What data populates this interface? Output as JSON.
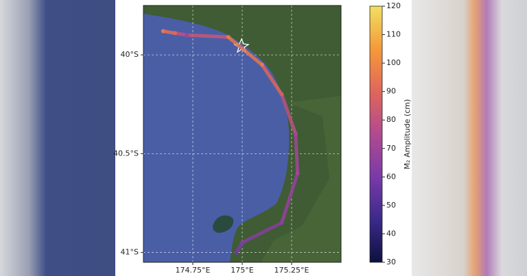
{
  "chart_data": {
    "type": "map",
    "xlim": [
      174.5,
      175.5
    ],
    "ylim": [
      -41.05,
      -39.75
    ],
    "xticks": [
      {
        "value": 174.75,
        "label": "174.75°E"
      },
      {
        "value": 175,
        "label": "175°E"
      },
      {
        "value": 175.25,
        "label": "175.25°E"
      }
    ],
    "yticks": [
      {
        "value": -40,
        "label": "40°S"
      },
      {
        "value": -40.5,
        "label": "40.5°S"
      },
      {
        "value": -41,
        "label": "41°S"
      }
    ],
    "grid": true,
    "track": {
      "lon": [
        174.6,
        174.66,
        174.72,
        174.93,
        175.1,
        175.2,
        175.27,
        175.28,
        175.2,
        175.0,
        174.97
      ],
      "lat": [
        -39.88,
        -39.89,
        -39.9,
        -39.91,
        -40.05,
        -40.2,
        -40.4,
        -40.6,
        -40.85,
        -40.95,
        -41.0
      ],
      "values": [
        95,
        90,
        70,
        95,
        95,
        85,
        72,
        70,
        65,
        62,
        58
      ]
    },
    "colorbar": {
      "label": "M₂ Amplitude (cm)",
      "clim": [
        30,
        120
      ],
      "ticks": [
        30,
        40,
        50,
        60,
        70,
        80,
        90,
        100,
        110,
        120
      ],
      "colors": [
        "#0d1040",
        "#3a2a8a",
        "#7a3aa8",
        "#b04a90",
        "#e0665a",
        "#f59a3a",
        "#f0e060"
      ]
    }
  }
}
